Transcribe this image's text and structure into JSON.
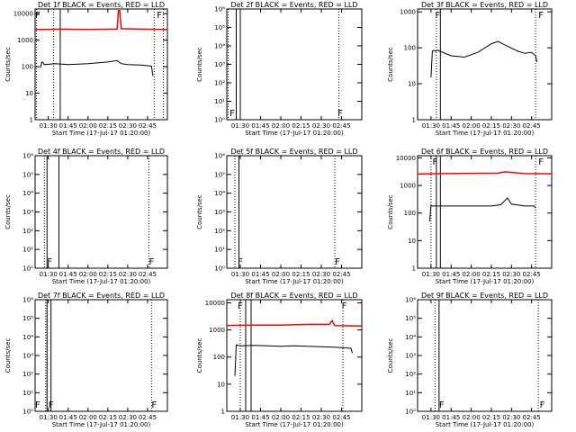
{
  "page": {
    "background": "#ffffff"
  },
  "colors": {
    "events": "#000000",
    "lld": "#ff0000",
    "frame": "#000000"
  },
  "chart_data": [
    {
      "type": "line",
      "panel": 0,
      "title": "Det 1f BLACK = Events, RED = LLD",
      "xlabel": "Start Time (17-Jul-17 01:20:00)",
      "ylabel": "Counts/sec",
      "xlim": [
        "01:20",
        "03:00"
      ],
      "x_ticks": [
        "01:30",
        "01:45",
        "02:00",
        "02:15",
        "02:30",
        "02:45"
      ],
      "yscale": "log",
      "ylim": [
        1,
        15000
      ],
      "y_ticks": [
        "1",
        "10",
        "100",
        "1000",
        "10000"
      ],
      "markers": [
        {
          "label": "F",
          "time": "01:22"
        },
        {
          "label": "F",
          "time": "02:54"
        }
      ],
      "vlines_dotted": [
        "01:21",
        "01:34",
        "02:50",
        "02:57"
      ],
      "vlines_solid": [
        "01:39"
      ],
      "series": [
        {
          "name": "BLACK = Events",
          "color": "#000000",
          "x": [
            "01:24",
            "01:25",
            "01:26",
            "01:27",
            "01:35",
            "01:45",
            "02:00",
            "02:15",
            "02:22",
            "02:25",
            "02:30",
            "02:40",
            "02:48",
            "02:49"
          ],
          "y": [
            90,
            150,
            140,
            120,
            130,
            120,
            130,
            150,
            170,
            130,
            120,
            115,
            105,
            45
          ]
        },
        {
          "name": "RED = LLD",
          "color": "#ff0000",
          "x": [
            "01:20",
            "01:40",
            "02:00",
            "02:18",
            "02:22",
            "02:23",
            "02:24",
            "02:25",
            "02:40",
            "03:00"
          ],
          "y": [
            2500,
            2600,
            2550,
            2600,
            2600,
            13000,
            13000,
            2700,
            2600,
            2550
          ]
        }
      ]
    },
    {
      "type": "line",
      "panel": 1,
      "title": "Det 2f BLACK = Events, RED = LLD",
      "xlabel": "Start Time (17-Jul-17 01:20:00)",
      "ylabel": "Counts/sec",
      "xlim": [
        "01:20",
        "03:00"
      ],
      "x_ticks": [
        "01:30",
        "01:45",
        "02:00",
        "02:15",
        "02:30",
        "02:45"
      ],
      "yscale": "log",
      "ylim": [
        1,
        1000000
      ],
      "y_ticks": [
        "10⁰",
        "10¹",
        "10²",
        "10³",
        "10⁴",
        "10⁵",
        "10⁶"
      ],
      "markers": [
        {
          "label": "F",
          "time": "01:24"
        },
        {
          "label": "F",
          "time": "02:44"
        }
      ],
      "vlines_dotted": [
        "01:21",
        "02:43"
      ],
      "vlines_solid": [
        "01:27",
        "01:30"
      ],
      "series": []
    },
    {
      "type": "line",
      "panel": 2,
      "title": "Det 3f BLACK = Events, RED = LLD",
      "xlabel": "Start Time (17-Jul-17 01:20:00)",
      "ylabel": "Counts/sec",
      "xlim": [
        "01:20",
        "03:00"
      ],
      "x_ticks": [
        "01:30",
        "01:45",
        "02:00",
        "02:15",
        "02:30",
        "02:45"
      ],
      "yscale": "log",
      "ylim": [
        1,
        1200
      ],
      "y_ticks": [
        "1",
        "10",
        "100",
        "1000"
      ],
      "markers": [
        {
          "label": "F",
          "time": "01:35"
        },
        {
          "label": "F",
          "time": "02:52"
        }
      ],
      "vlines_dotted": [
        "01:34",
        "02:48"
      ],
      "vlines_solid": [
        "01:37"
      ],
      "series": [
        {
          "name": "BLACK = Events",
          "color": "#000000",
          "x": [
            "01:30",
            "01:31",
            "01:32",
            "01:33",
            "01:35",
            "01:45",
            "01:55",
            "02:05",
            "02:15",
            "02:20",
            "02:25",
            "02:35",
            "02:40",
            "02:45",
            "02:48",
            "02:49"
          ],
          "y": [
            15,
            80,
            85,
            80,
            85,
            60,
            55,
            75,
            130,
            150,
            120,
            80,
            70,
            75,
            60,
            40
          ]
        }
      ]
    },
    {
      "type": "line",
      "panel": 3,
      "title": "Det 4f BLACK = Events, RED = LLD",
      "xlabel": "Start Time (17-Jul-17 01:20:00)",
      "ylabel": "Counts/sec",
      "xlim": [
        "01:20",
        "03:00"
      ],
      "x_ticks": [
        "01:30",
        "01:45",
        "02:00",
        "02:15",
        "02:30",
        "02:45"
      ],
      "yscale": "log",
      "ylim": [
        1,
        1000000
      ],
      "y_ticks": [
        "10⁰",
        "10¹",
        "10²",
        "10³",
        "10⁴",
        "10⁵",
        "10⁶"
      ],
      "markers": [
        {
          "label": "F",
          "time": "01:31"
        },
        {
          "label": "F",
          "time": "02:48"
        }
      ],
      "vlines_dotted": [
        "01:27",
        "02:46"
      ],
      "vlines_solid": [
        "01:29",
        "01:38"
      ],
      "series": []
    },
    {
      "type": "line",
      "panel": 4,
      "title": "Det 5f BLACK = Events, RED = LLD",
      "xlabel": "Start Time (17-Jul-17 01:20:00)",
      "ylabel": "Counts/sec",
      "xlim": [
        "01:20",
        "03:00"
      ],
      "x_ticks": [
        "01:30",
        "01:45",
        "02:00",
        "02:15",
        "02:30",
        "02:45"
      ],
      "yscale": "log",
      "ylim": [
        1,
        1000000
      ],
      "y_ticks": [
        "10⁰",
        "10¹",
        "10²",
        "10³",
        "10⁴",
        "10⁵",
        "10⁶"
      ],
      "markers": [
        {
          "label": "F",
          "time": "01:30"
        },
        {
          "label": "F",
          "time": "02:42"
        }
      ],
      "vlines_dotted": [
        "01:26",
        "02:40"
      ],
      "vlines_solid": [
        "01:29"
      ],
      "series": []
    },
    {
      "type": "line",
      "panel": 5,
      "title": "Det 6f BLACK = Events, RED = LLD",
      "xlabel": "Start Time (17-Jul-17 01:20:00)",
      "ylabel": "Counts/sec",
      "xlim": [
        "01:20",
        "03:00"
      ],
      "x_ticks": [
        "01:30",
        "01:45",
        "02:00",
        "02:15",
        "02:30",
        "02:45"
      ],
      "yscale": "log",
      "ylim": [
        1,
        12000
      ],
      "y_ticks": [
        "1",
        "10",
        "100",
        "1000",
        "10000"
      ],
      "markers": [
        {
          "label": "F",
          "time": "01:33"
        },
        {
          "label": "F",
          "time": "02:52"
        }
      ],
      "vlines_dotted": [
        "01:30",
        "02:48"
      ],
      "vlines_solid": [
        "01:34",
        "01:37"
      ],
      "series": [
        {
          "name": "BLACK = Events",
          "color": "#000000",
          "x": [
            "01:29",
            "01:30",
            "01:31",
            "01:45",
            "02:00",
            "02:15",
            "02:22",
            "02:27",
            "02:30",
            "02:40",
            "02:47",
            "02:48"
          ],
          "y": [
            50,
            190,
            180,
            180,
            180,
            180,
            200,
            350,
            210,
            180,
            180,
            150
          ]
        },
        {
          "name": "RED = LLD",
          "color": "#ff0000",
          "x": [
            "01:20",
            "01:40",
            "02:00",
            "02:20",
            "02:25",
            "02:40",
            "03:00"
          ],
          "y": [
            2600,
            2700,
            2750,
            2800,
            3100,
            2700,
            2650
          ]
        }
      ]
    },
    {
      "type": "line",
      "panel": 6,
      "title": "Det 7f BLACK = Events, RED = LLD",
      "xlabel": "Start Time (17-Jul-17 01:20:00)",
      "ylabel": "Counts/sec",
      "xlim": [
        "01:20",
        "03:00"
      ],
      "x_ticks": [
        "01:30",
        "01:45",
        "02:00",
        "02:15",
        "02:30",
        "02:45"
      ],
      "yscale": "log",
      "ylim": [
        1,
        1000000
      ],
      "y_ticks": [
        "10⁰",
        "10¹",
        "10²",
        "10³",
        "10⁴",
        "10⁵",
        "10⁶"
      ],
      "markers": [
        {
          "label": "F",
          "time": "01:22"
        },
        {
          "label": "F",
          "time": "01:32"
        },
        {
          "label": "F",
          "time": "02:50"
        }
      ],
      "vlines_dotted": [
        "01:28",
        "02:48"
      ],
      "vlines_solid": [
        "01:29",
        "01:32"
      ],
      "series": []
    },
    {
      "type": "line",
      "panel": 7,
      "title": "Det 8f BLACK = Events, RED = LLD",
      "xlabel": "Start Time (17-Jul-17 01:20:00)",
      "ylabel": "Counts/sec",
      "xlim": [
        "01:20",
        "03:00"
      ],
      "x_ticks": [
        "01:30",
        "01:45",
        "02:00",
        "02:15",
        "02:30",
        "02:45"
      ],
      "yscale": "log",
      "ylim": [
        1,
        13000
      ],
      "y_ticks": [
        "1",
        "10",
        "100",
        "1000",
        "10000"
      ],
      "markers": [
        {
          "label": "F",
          "time": "01:30"
        },
        {
          "label": "F",
          "time": "02:47"
        }
      ],
      "vlines_dotted": [
        "01:30",
        "02:46"
      ],
      "vlines_solid": [
        "01:34",
        "01:38"
      ],
      "series": [
        {
          "name": "BLACK = Events",
          "color": "#000000",
          "x": [
            "01:26",
            "01:27",
            "01:30",
            "01:40",
            "01:50",
            "02:00",
            "02:10",
            "02:20",
            "02:30",
            "02:40",
            "02:52",
            "02:53"
          ],
          "y": [
            20,
            280,
            260,
            270,
            260,
            250,
            260,
            250,
            240,
            230,
            210,
            140
          ]
        },
        {
          "name": "RED = LLD",
          "color": "#ff0000",
          "x": [
            "01:20",
            "01:40",
            "02:00",
            "02:20",
            "02:36",
            "02:38",
            "02:40",
            "03:00"
          ],
          "y": [
            1450,
            1500,
            1500,
            1600,
            1600,
            2200,
            1450,
            1400
          ]
        }
      ]
    },
    {
      "type": "line",
      "panel": 8,
      "title": "Det 9f BLACK = Events, RED = LLD",
      "xlabel": "Start Time (17-Jul-17 01:20:00)",
      "ylabel": "Counts/sec",
      "xlim": [
        "01:20",
        "03:00"
      ],
      "x_ticks": [
        "01:30",
        "01:45",
        "02:00",
        "02:15",
        "02:30",
        "02:45"
      ],
      "yscale": "log",
      "ylim": [
        1,
        1000000
      ],
      "y_ticks": [
        "10⁰",
        "10¹",
        "10²",
        "10³",
        "10⁴",
        "10⁵",
        "10⁶"
      ],
      "markers": [
        {
          "label": "F",
          "time": "01:38"
        },
        {
          "label": "F",
          "time": "02:53"
        }
      ],
      "vlines_dotted": [
        "01:33",
        "02:50"
      ],
      "vlines_solid": [
        "01:36"
      ],
      "series": []
    }
  ]
}
